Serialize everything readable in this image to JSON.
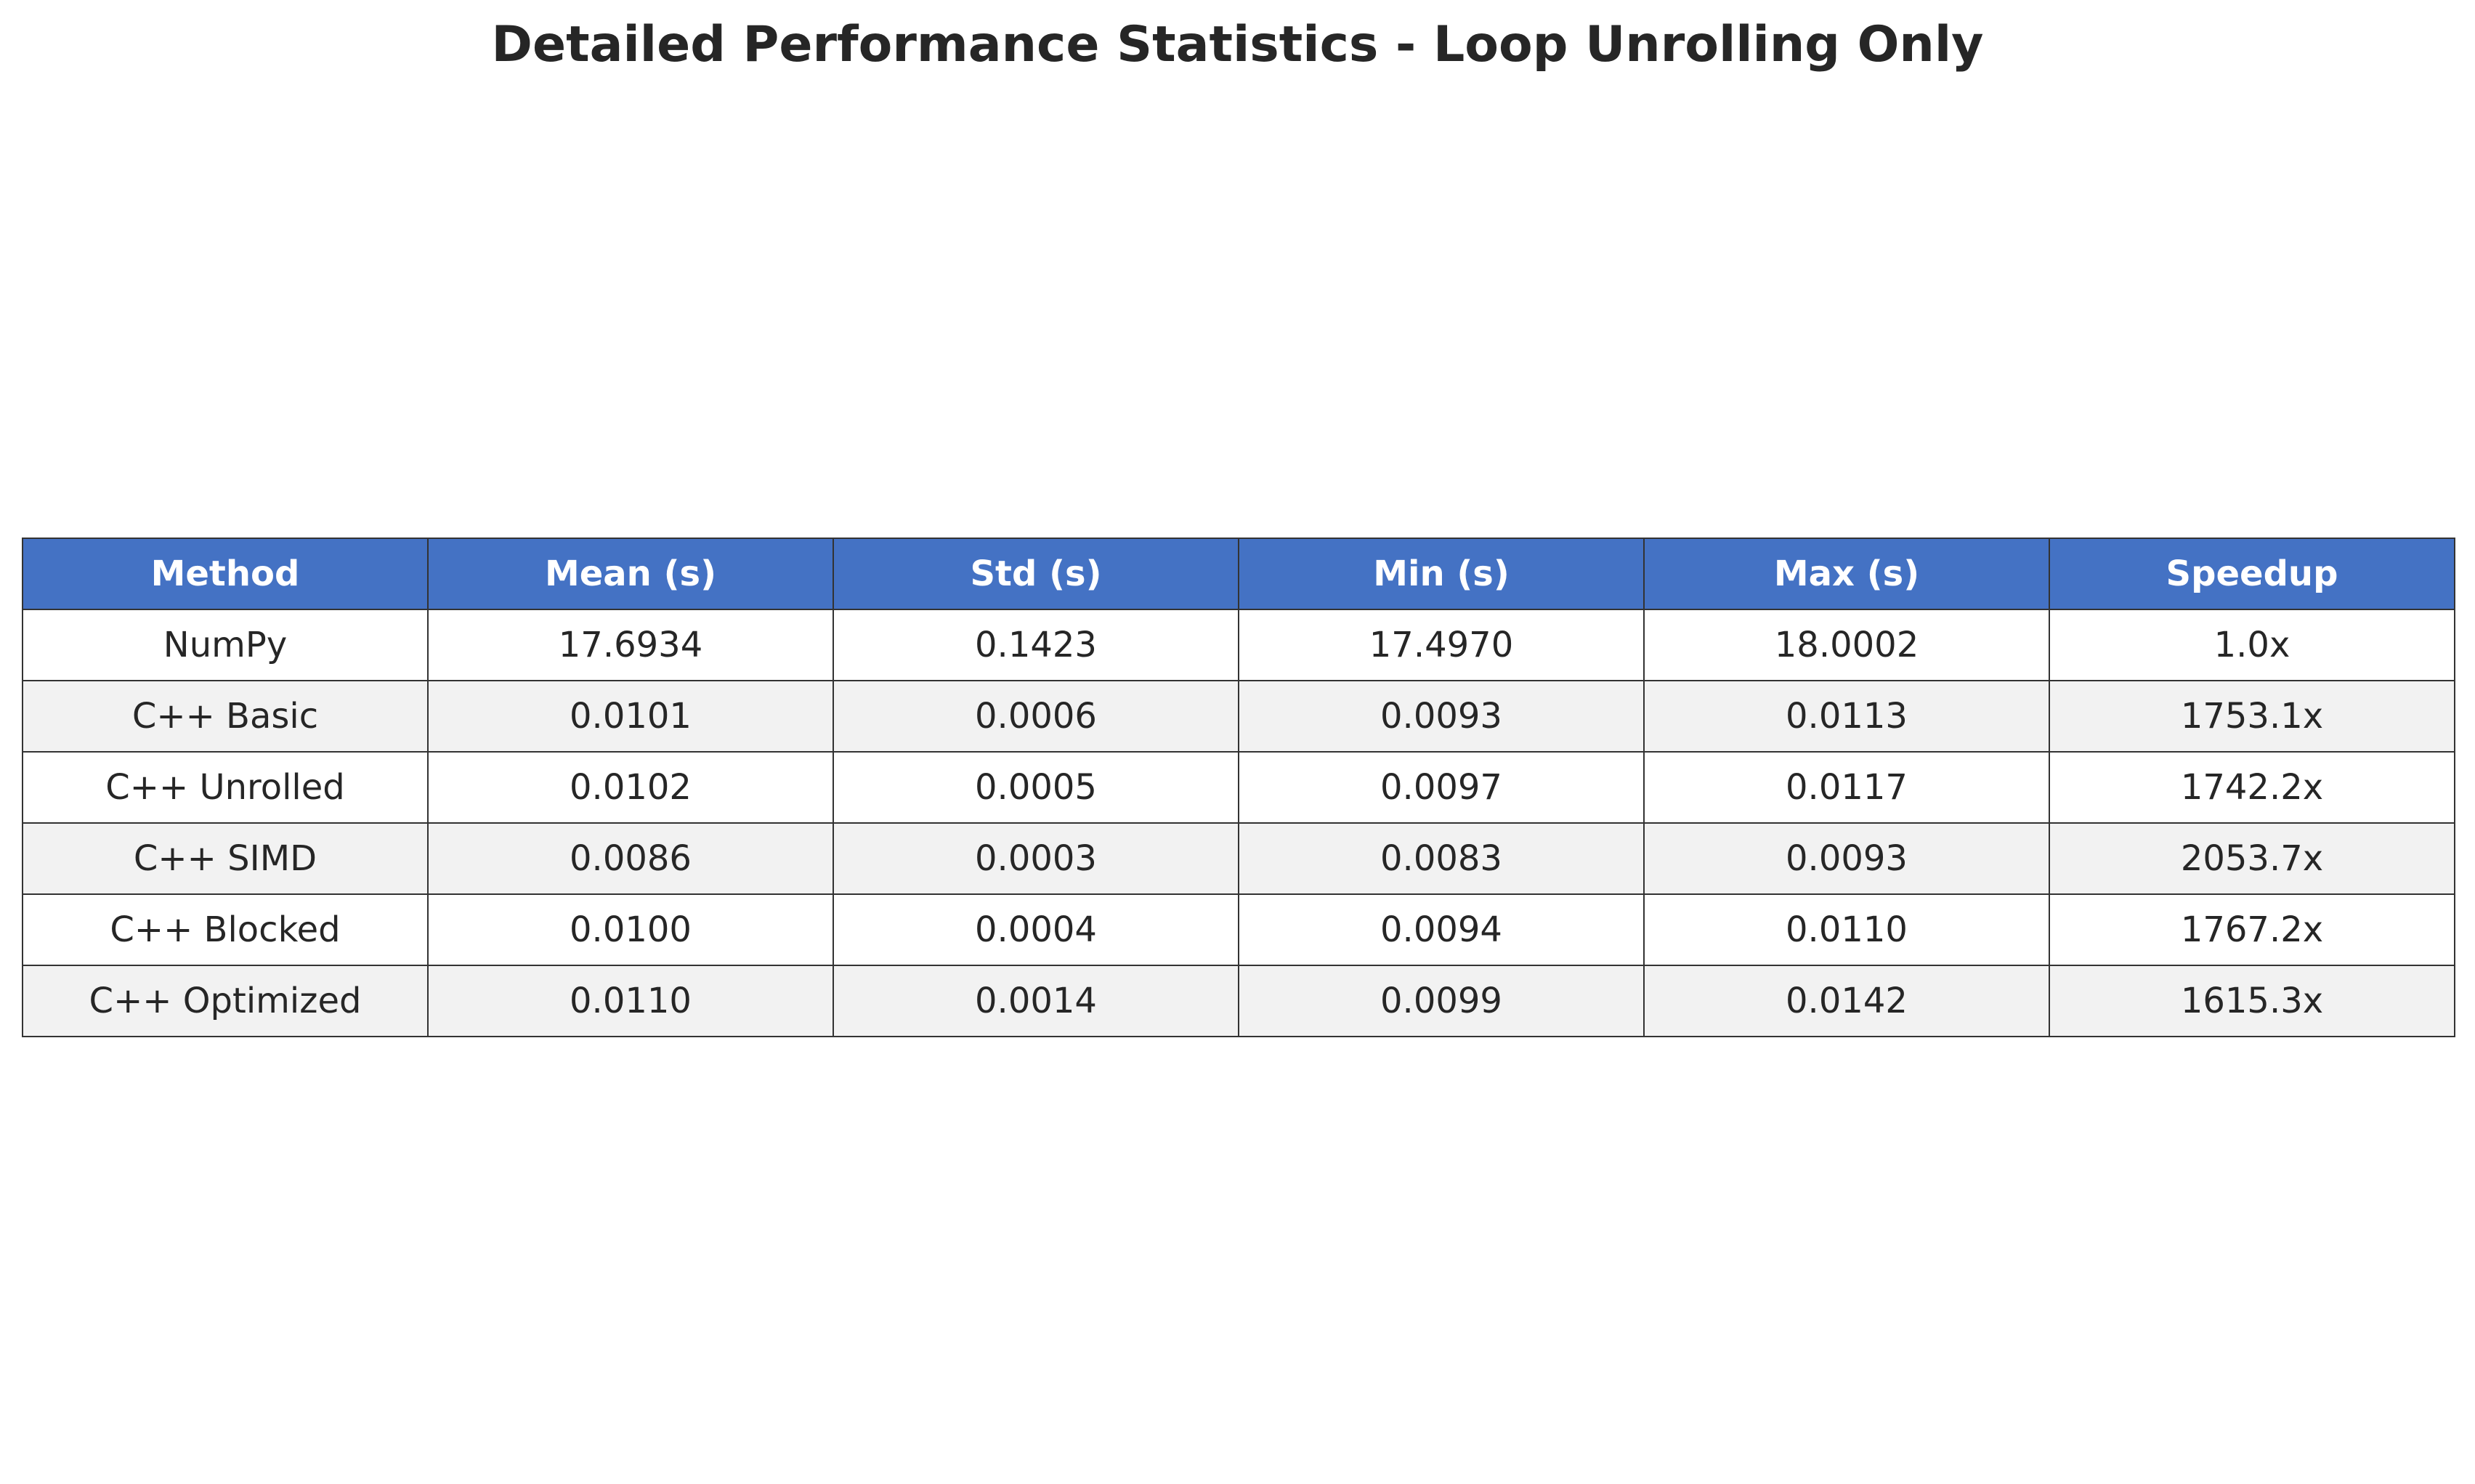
{
  "chart_data": {
    "type": "table",
    "title": "Detailed Performance Statistics - Loop Unrolling Only",
    "columns": [
      "Method",
      "Mean (s)",
      "Std (s)",
      "Min (s)",
      "Max (s)",
      "Speedup"
    ],
    "rows": [
      [
        "NumPy",
        "17.6934",
        "0.1423",
        "17.4970",
        "18.0002",
        "1.0x"
      ],
      [
        "C++ Basic",
        "0.0101",
        "0.0006",
        "0.0093",
        "0.0113",
        "1753.1x"
      ],
      [
        "C++ Unrolled",
        "0.0102",
        "0.0005",
        "0.0097",
        "0.0117",
        "1742.2x"
      ],
      [
        "C++ SIMD",
        "0.0086",
        "0.0003",
        "0.0083",
        "0.0093",
        "2053.7x"
      ],
      [
        "C++ Blocked",
        "0.0100",
        "0.0004",
        "0.0094",
        "0.0110",
        "1767.2x"
      ],
      [
        "C++ Optimized",
        "0.0110",
        "0.0014",
        "0.0099",
        "0.0142",
        "1615.3x"
      ]
    ],
    "header_color": "#4472c4",
    "header_text_color": "#ffffff",
    "stripe_color": "#f2f2f2",
    "row_color": "#ffffff"
  }
}
